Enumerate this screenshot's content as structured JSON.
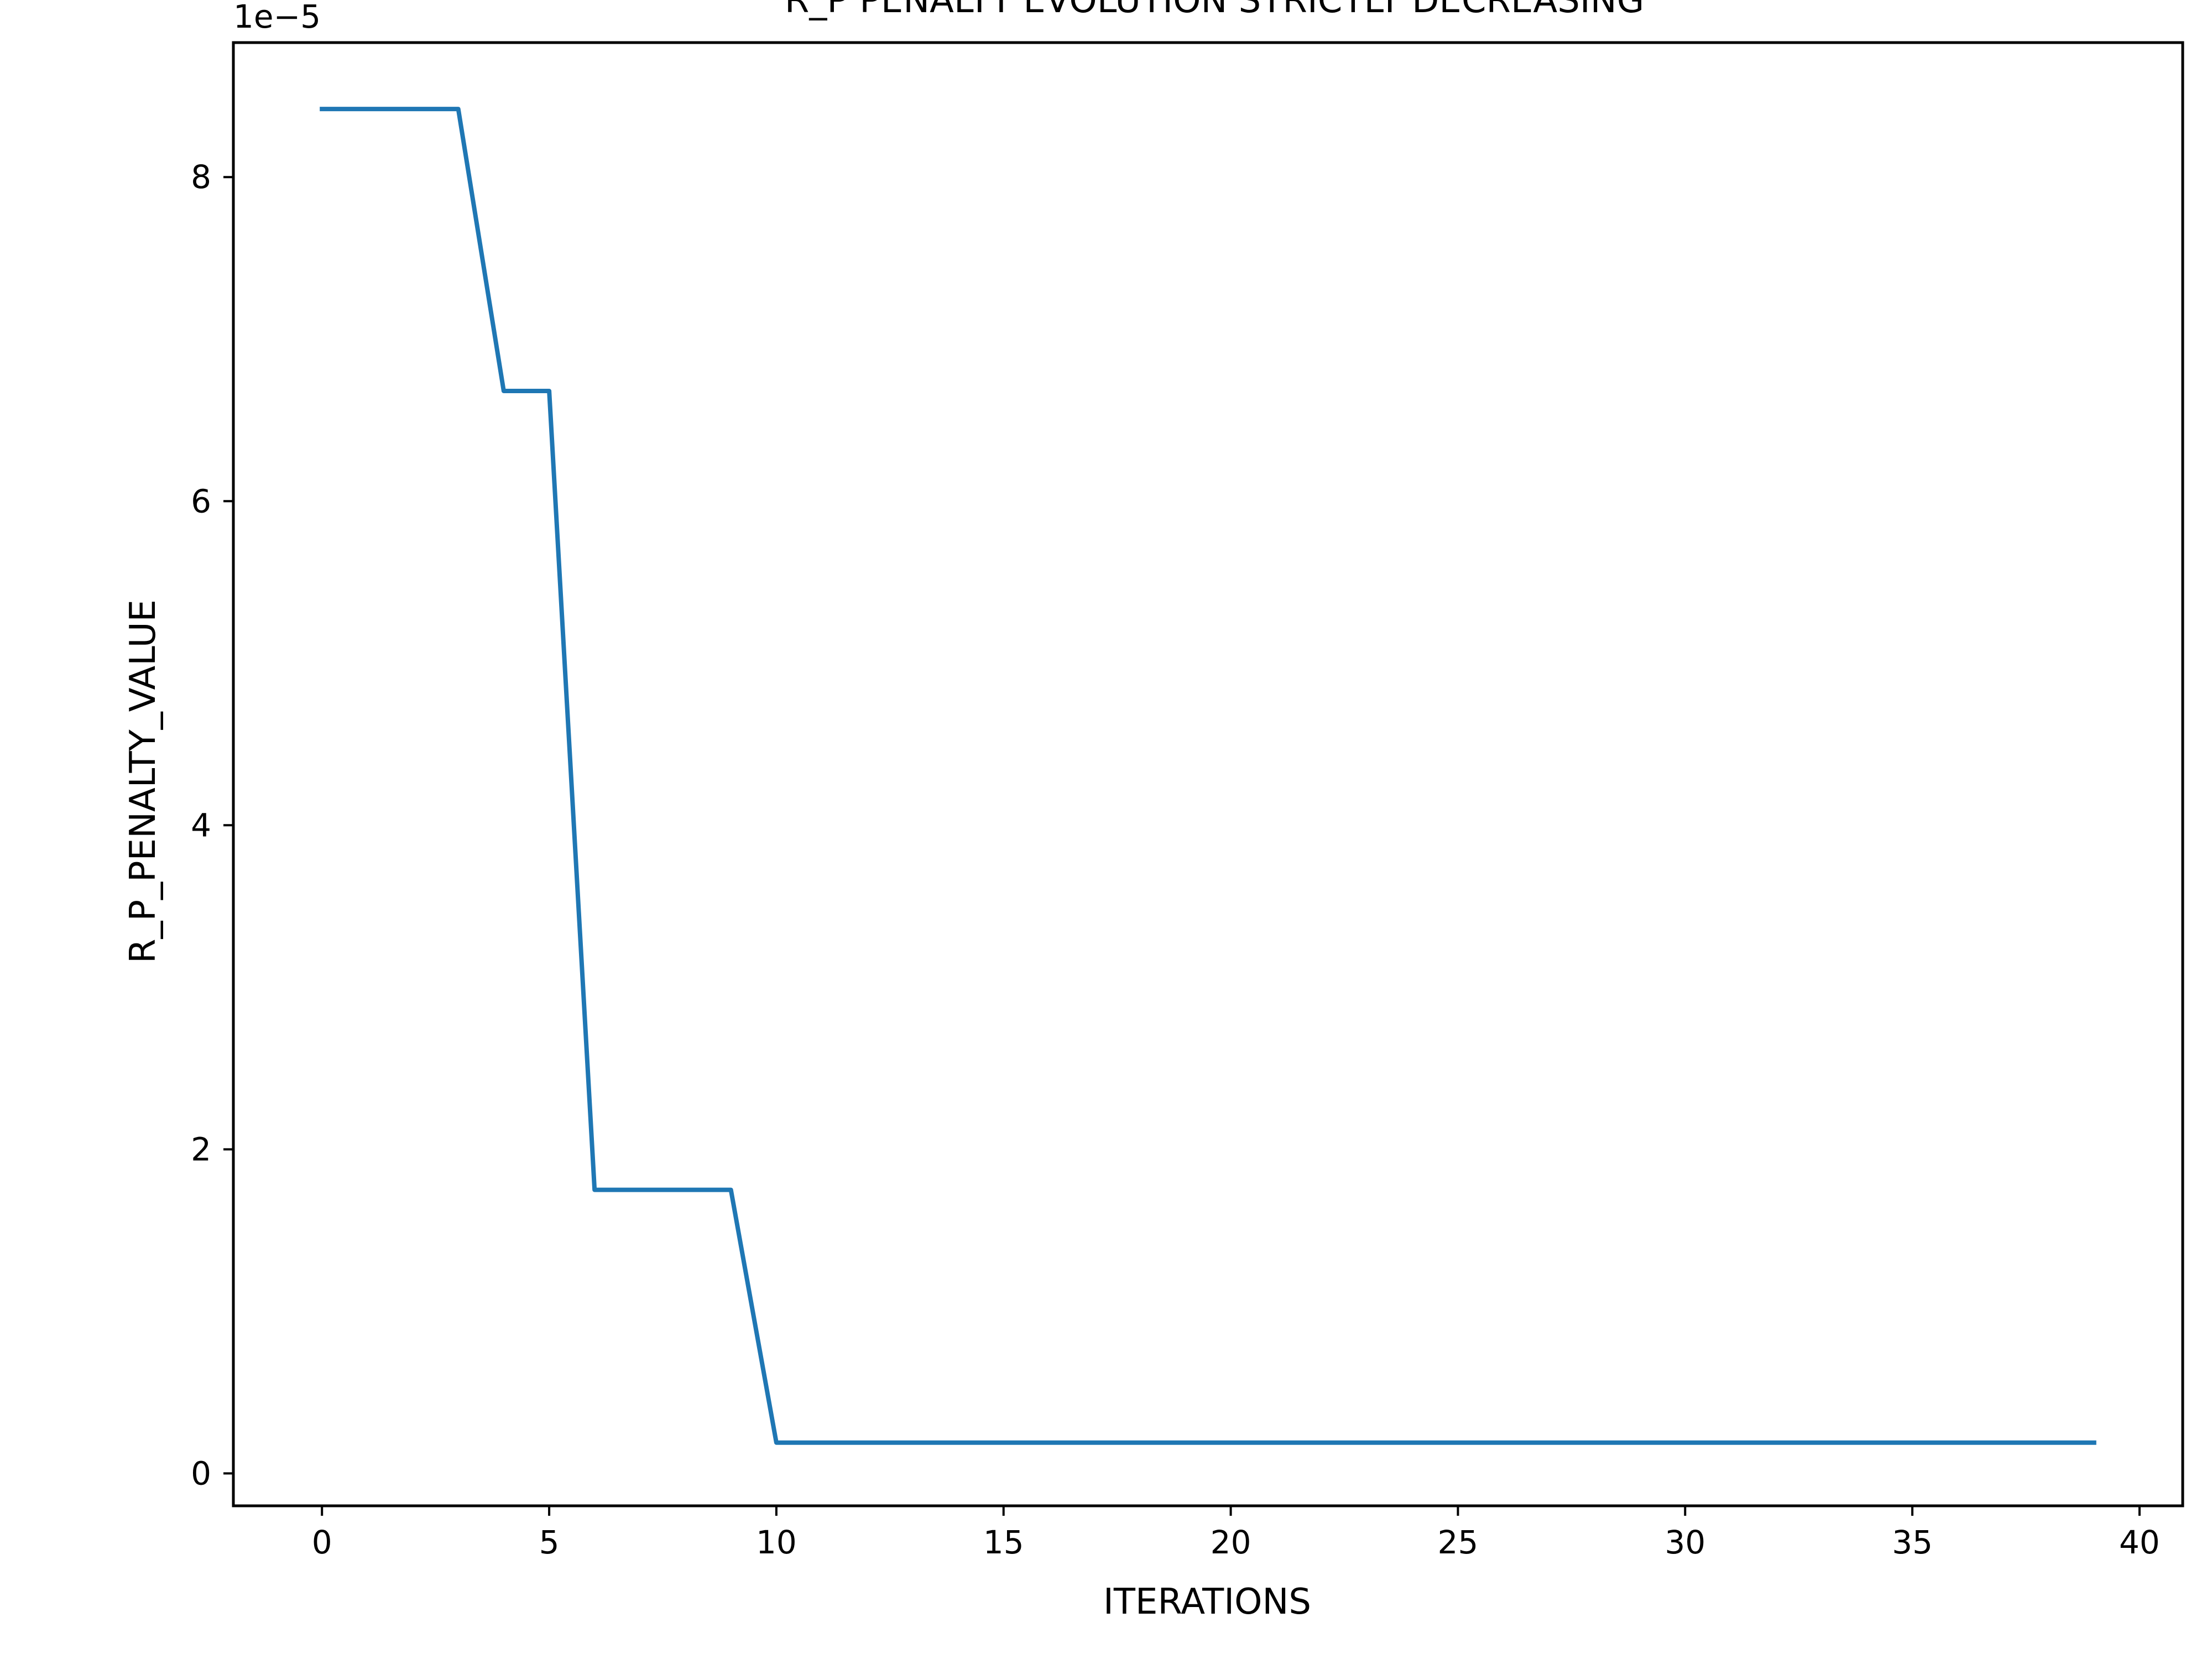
{
  "chart_data": {
    "type": "line",
    "title": "R_P PENALTY EVOLUTION STRICTLY DECREASING",
    "xlabel": "ITERATIONS",
    "ylabel": "R_P_PENALTY_VALUE",
    "y_offset_label": "1e−5",
    "xlim": [
      -1.95,
      40.95
    ],
    "ylim": [
      -2e-06,
      8.83e-05
    ],
    "xticks": [
      0,
      5,
      10,
      15,
      20,
      25,
      30,
      35,
      40
    ],
    "xtick_labels": [
      "0",
      "5",
      "10",
      "15",
      "20",
      "25",
      "30",
      "35",
      "40"
    ],
    "yticks": [
      0,
      2e-05,
      4e-05,
      6e-05,
      8e-05
    ],
    "ytick_labels": [
      "0",
      "2",
      "4",
      "6",
      "8"
    ],
    "grid": false,
    "line_color": "#1f77b4",
    "series": [
      {
        "x": [
          0,
          1,
          2,
          3,
          4,
          5,
          6,
          7,
          8,
          9,
          10,
          11,
          12,
          13,
          14,
          15,
          16,
          17,
          18,
          19,
          20,
          21,
          22,
          23,
          24,
          25,
          26,
          27,
          28,
          29,
          30,
          31,
          32,
          33,
          34,
          35,
          36,
          37,
          38,
          39
        ],
        "values": [
          8.42e-05,
          8.42e-05,
          8.42e-05,
          8.42e-05,
          6.68e-05,
          6.68e-05,
          1.75e-05,
          1.75e-05,
          1.75e-05,
          1.75e-05,
          1.9e-06,
          1.9e-06,
          1.9e-06,
          1.9e-06,
          1.9e-06,
          1.9e-06,
          1.9e-06,
          1.9e-06,
          1.9e-06,
          1.9e-06,
          1.9e-06,
          1.9e-06,
          1.9e-06,
          1.9e-06,
          1.9e-06,
          1.9e-06,
          1.9e-06,
          1.9e-06,
          1.9e-06,
          1.9e-06,
          1.9e-06,
          1.9e-06,
          1.9e-06,
          1.9e-06,
          1.9e-06,
          1.9e-06,
          1.9e-06,
          1.9e-06,
          1.9e-06,
          1.9e-06
        ]
      }
    ]
  }
}
